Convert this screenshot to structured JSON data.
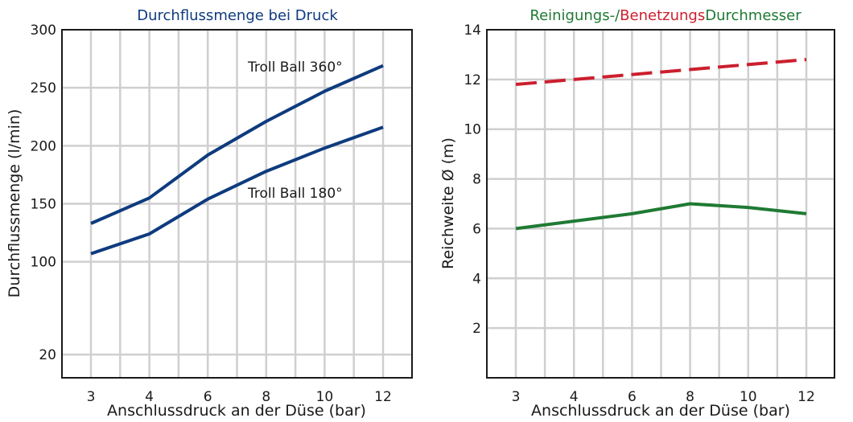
{
  "chart_data": [
    {
      "type": "line",
      "title": "Durchflussmenge bei Druck",
      "title_color": "#0e3b7e",
      "xlabel": "Anschlussdruck an der Düse (bar)",
      "ylabel": "Durchflussmenge (l/min)",
      "categories": [
        "3",
        "4",
        "6",
        "8",
        "10",
        "12"
      ],
      "y_ticks": [
        "20",
        "100",
        "150",
        "200",
        "250",
        "300"
      ],
      "ylim": [
        0,
        300
      ],
      "grid": true,
      "series": [
        {
          "name": "Troll Ball 360°",
          "values": [
            133,
            155,
            192,
            221,
            247,
            269
          ],
          "color": "#0e3b7e",
          "dashed": false
        },
        {
          "name": "Troll Ball 180°",
          "values": [
            107,
            124,
            154,
            178,
            198,
            216
          ],
          "color": "#0e3b7e",
          "dashed": false
        }
      ]
    },
    {
      "type": "line",
      "title_parts": [
        {
          "text": "Reinigungs-/",
          "color": "#1f7a33"
        },
        {
          "text": "Benetzungs",
          "color": "#cc1f2e"
        },
        {
          "text": "Durchmesser",
          "color": "#1f7a33"
        }
      ],
      "xlabel": "Anschlussdruck an der Düse (bar)",
      "ylabel": "Reichweite Ø (m)",
      "categories": [
        "3",
        "4",
        "6",
        "8",
        "10",
        "12"
      ],
      "y_ticks": [
        "2",
        "4",
        "6",
        "8",
        "10",
        "12",
        "14"
      ],
      "ylim": [
        0,
        14
      ],
      "grid": true,
      "series": [
        {
          "values": [
            11.8,
            12.0,
            12.2,
            12.4,
            12.6,
            12.8
          ],
          "color": "#cc1f2e",
          "dashed": true
        },
        {
          "values": [
            6.0,
            6.3,
            6.6,
            7.0,
            6.85,
            6.6
          ],
          "color": "#1f7a33",
          "dashed": false
        }
      ]
    }
  ]
}
